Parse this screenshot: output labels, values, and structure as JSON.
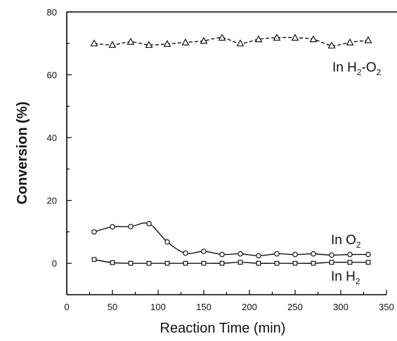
{
  "chart_data": {
    "type": "line",
    "xlabel": "Reaction Time (min)",
    "ylabel": "Conversion (%)",
    "xlim": [
      0,
      350
    ],
    "ylim": [
      -10,
      80
    ],
    "xticks": [
      0,
      50,
      100,
      150,
      200,
      250,
      300,
      350
    ],
    "yticks": [
      0,
      20,
      40,
      60,
      80
    ],
    "grid": false,
    "series": [
      {
        "label": {
          "pre": "In H",
          "sub1": "2",
          "mid": "-O",
          "sub2": "2"
        },
        "marker": "triangle",
        "line_style": "dashed",
        "x": [
          30,
          50,
          70,
          90,
          110,
          130,
          150,
          170,
          190,
          210,
          230,
          250,
          270,
          290,
          310,
          330
        ],
        "y": [
          70.0,
          69.5,
          70.5,
          69.5,
          69.8,
          70.3,
          70.8,
          71.8,
          70.0,
          71.3,
          71.8,
          71.8,
          71.3,
          69.3,
          70.3,
          71.0
        ]
      },
      {
        "label": {
          "pre": "In O",
          "sub1": "2"
        },
        "marker": "circle",
        "line_style": "solid",
        "x": [
          30,
          50,
          70,
          90,
          110,
          130,
          150,
          170,
          190,
          210,
          230,
          250,
          270,
          290,
          310,
          330
        ],
        "y": [
          10.0,
          11.6,
          11.7,
          12.6,
          6.8,
          3.2,
          3.8,
          2.8,
          3.0,
          2.4,
          3.0,
          2.8,
          3.0,
          2.6,
          2.8,
          2.8
        ]
      },
      {
        "label": {
          "pre": "In H",
          "sub1": "2"
        },
        "marker": "square",
        "line_style": "solid",
        "x": [
          30,
          50,
          70,
          90,
          110,
          130,
          150,
          170,
          190,
          210,
          230,
          250,
          270,
          290,
          310,
          330
        ],
        "y": [
          1.2,
          0.2,
          0.0,
          0.0,
          0.0,
          0.0,
          0.0,
          0.0,
          0.3,
          0.0,
          0.0,
          0.0,
          0.0,
          0.3,
          0.3,
          0.3
        ]
      }
    ]
  }
}
